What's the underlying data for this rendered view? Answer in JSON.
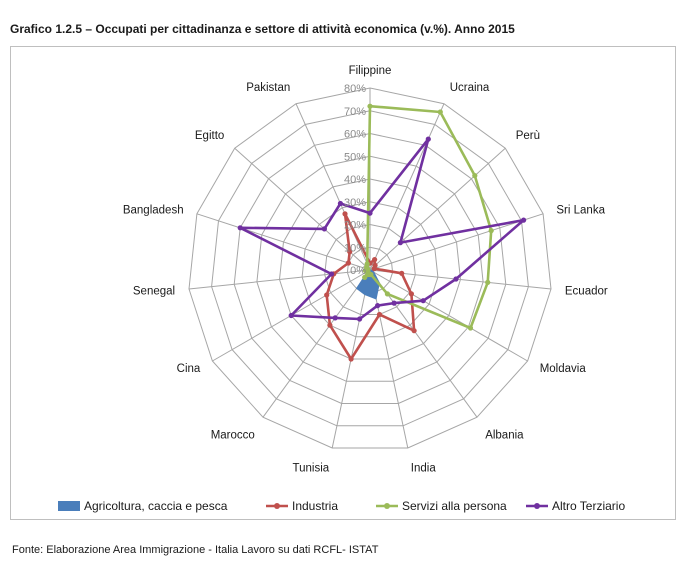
{
  "title": "Grafico 1.2.5 – Occupati per cittadinanza e settore di attività economica (v.%). Anno 2015",
  "source": "Fonte: Elaborazione Area Immigrazione - Italia Lavoro su dati RCFL- ISTAT",
  "chart_data": {
    "type": "radar",
    "categories": [
      "Filippine",
      "Ucraina",
      "Perù",
      "Sri Lanka",
      "Ecuador",
      "Moldavia",
      "Albania",
      "India",
      "Tunisia",
      "Marocco",
      "Cina",
      "Senegal",
      "Bangladesh",
      "Egitto",
      "Pakistan"
    ],
    "r_ticks": [
      "0%",
      "10%",
      "20%",
      "30%",
      "40%",
      "50%",
      "60%",
      "70%",
      "80%"
    ],
    "r_range": [
      0,
      80
    ],
    "grid": true,
    "legend_position": "bottom",
    "series": [
      {
        "name": "Agricoltura, caccia e pesca",
        "color": "#4a7ebb",
        "style": "area",
        "values": [
          0,
          0,
          0,
          0,
          1,
          2,
          7,
          13,
          11,
          10,
          1,
          0,
          0,
          0,
          0
        ]
      },
      {
        "name": "Industria",
        "color": "#c0504d",
        "style": "line",
        "values": [
          3,
          5,
          3,
          2,
          14,
          21,
          33,
          20,
          40,
          30,
          22,
          16,
          10,
          12,
          27
        ]
      },
      {
        "name": "Servizi alla persona",
        "color": "#9bbb59",
        "style": "line",
        "values": [
          72,
          76,
          62,
          56,
          52,
          51,
          13,
          2,
          2,
          4,
          1,
          2,
          1,
          2,
          3
        ]
      },
      {
        "name": "Altro Terziario",
        "color": "#7030a0",
        "style": "line",
        "values": [
          25,
          63,
          18,
          71,
          38,
          27,
          18,
          16,
          22,
          26,
          40,
          17,
          60,
          27,
          32
        ]
      }
    ]
  }
}
